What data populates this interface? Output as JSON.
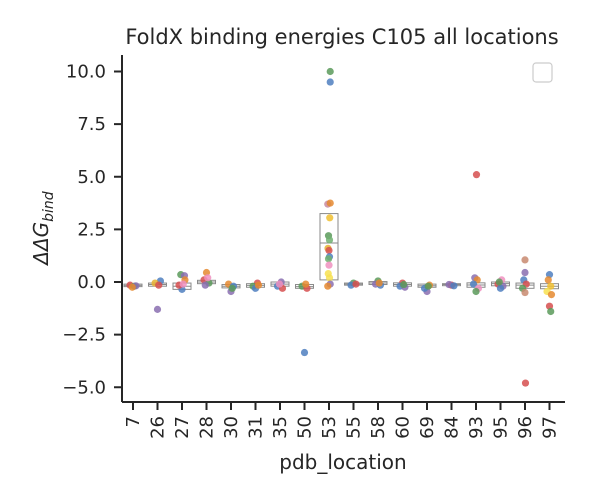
{
  "chart_data": {
    "type": "box",
    "title": "FoldX binding energies C105 all locations",
    "xlabel": "pdb_location",
    "ylabel_parts": {
      "delta": "ΔΔG",
      "subscript": "bind"
    },
    "categories": [
      "7",
      "26",
      "27",
      "28",
      "30",
      "31",
      "35",
      "50",
      "53",
      "55",
      "58",
      "60",
      "69",
      "84",
      "93",
      "95",
      "96",
      "97"
    ],
    "ylim": [
      -5.7,
      10.9
    ],
    "yticks": [
      {
        "value": 10.0,
        "label": "10.0"
      },
      {
        "value": 7.5,
        "label": "7.5"
      },
      {
        "value": 5.0,
        "label": "5.0"
      },
      {
        "value": 2.5,
        "label": "2.5"
      },
      {
        "value": 0.0,
        "label": "0.0"
      },
      {
        "value": -2.5,
        "label": "−2.5"
      },
      {
        "value": -5.0,
        "label": "−5.0"
      }
    ],
    "legend": {
      "placement": "top-right",
      "entries": []
    },
    "grid": false,
    "boxes": [
      {
        "q1": -0.22,
        "median": -0.16,
        "q3": -0.1
      },
      {
        "q1": -0.2,
        "median": -0.12,
        "q3": -0.05
      },
      {
        "q1": -0.35,
        "median": -0.2,
        "q3": -0.05
      },
      {
        "q1": -0.08,
        "median": 0.0,
        "q3": 0.08
      },
      {
        "q1": -0.28,
        "median": -0.2,
        "q3": -0.12
      },
      {
        "q1": -0.25,
        "median": -0.16,
        "q3": -0.08
      },
      {
        "q1": -0.2,
        "median": -0.1,
        "q3": 0.0
      },
      {
        "q1": -0.3,
        "median": -0.22,
        "q3": -0.12
      },
      {
        "q1": 0.1,
        "median": 1.85,
        "q3": 3.25
      },
      {
        "q1": -0.15,
        "median": -0.1,
        "q3": -0.05
      },
      {
        "q1": -0.12,
        "median": -0.05,
        "q3": 0.02
      },
      {
        "q1": -0.2,
        "median": -0.12,
        "q3": -0.04
      },
      {
        "q1": -0.25,
        "median": -0.18,
        "q3": -0.1
      },
      {
        "q1": -0.16,
        "median": -0.12,
        "q3": -0.08
      },
      {
        "q1": -0.25,
        "median": -0.14,
        "q3": -0.04
      },
      {
        "q1": -0.18,
        "median": -0.08,
        "q3": 0.0
      },
      {
        "q1": -0.3,
        "median": -0.15,
        "q3": -0.05
      },
      {
        "q1": -0.32,
        "median": -0.2,
        "q3": -0.08
      }
    ],
    "points": [
      {
        "cat": 0,
        "dx": -0.12,
        "y": -0.15,
        "color": "#d64f4f"
      },
      {
        "cat": 0,
        "dx": 0.05,
        "y": -0.2,
        "color": "#5a9a5a"
      },
      {
        "cat": 0,
        "dx": 0.12,
        "y": -0.18,
        "color": "#8a6fb0"
      },
      {
        "cat": 0,
        "dx": -0.03,
        "y": -0.25,
        "color": "#e58a30"
      },
      {
        "cat": 1,
        "dx": 0.0,
        "y": -1.3,
        "color": "#8a6fb0"
      },
      {
        "cat": 1,
        "dx": 0.12,
        "y": 0.05,
        "color": "#4f7fbf"
      },
      {
        "cat": 1,
        "dx": -0.1,
        "y": -0.05,
        "color": "#e5b030"
      },
      {
        "cat": 1,
        "dx": 0.05,
        "y": -0.15,
        "color": "#d64f4f"
      },
      {
        "cat": 2,
        "dx": -0.05,
        "y": 0.35,
        "color": "#5a9a5a"
      },
      {
        "cat": 2,
        "dx": 0.1,
        "y": 0.3,
        "color": "#8a6fb0"
      },
      {
        "cat": 2,
        "dx": 0.0,
        "y": -0.35,
        "color": "#4f7fbf"
      },
      {
        "cat": 2,
        "dx": -0.12,
        "y": -0.15,
        "color": "#d64f4f"
      },
      {
        "cat": 2,
        "dx": 0.12,
        "y": 0.1,
        "color": "#e58a30"
      },
      {
        "cat": 2,
        "dx": 0.05,
        "y": -0.1,
        "color": "#f090c0"
      },
      {
        "cat": 3,
        "dx": 0.0,
        "y": 0.45,
        "color": "#e58a30"
      },
      {
        "cat": 3,
        "dx": -0.1,
        "y": 0.1,
        "color": "#d64f4f"
      },
      {
        "cat": 3,
        "dx": 0.1,
        "y": -0.05,
        "color": "#5a9a5a"
      },
      {
        "cat": 3,
        "dx": 0.05,
        "y": 0.2,
        "color": "#f090c0"
      },
      {
        "cat": 3,
        "dx": -0.05,
        "y": -0.15,
        "color": "#8a6fb0"
      },
      {
        "cat": 4,
        "dx": 0.0,
        "y": -0.45,
        "color": "#8a6fb0"
      },
      {
        "cat": 4,
        "dx": -0.1,
        "y": -0.1,
        "color": "#e58a30"
      },
      {
        "cat": 4,
        "dx": 0.1,
        "y": -0.2,
        "color": "#4f7fbf"
      },
      {
        "cat": 4,
        "dx": 0.05,
        "y": -0.3,
        "color": "#5a9a5a"
      },
      {
        "cat": 5,
        "dx": 0.08,
        "y": -0.05,
        "color": "#d64f4f"
      },
      {
        "cat": 5,
        "dx": -0.1,
        "y": -0.2,
        "color": "#5a9a5a"
      },
      {
        "cat": 5,
        "dx": 0.0,
        "y": -0.3,
        "color": "#4f7fbf"
      },
      {
        "cat": 5,
        "dx": 0.12,
        "y": -0.15,
        "color": "#e58a30"
      },
      {
        "cat": 6,
        "dx": 0.05,
        "y": 0.0,
        "color": "#8a6fb0"
      },
      {
        "cat": 6,
        "dx": -0.1,
        "y": -0.2,
        "color": "#4f7fbf"
      },
      {
        "cat": 6,
        "dx": 0.1,
        "y": -0.3,
        "color": "#d64f4f"
      },
      {
        "cat": 6,
        "dx": -0.02,
        "y": -0.1,
        "color": "#f090c0"
      },
      {
        "cat": 7,
        "dx": 0.0,
        "y": -3.35,
        "color": "#4f7fbf"
      },
      {
        "cat": 7,
        "dx": -0.1,
        "y": -0.2,
        "color": "#5a9a5a"
      },
      {
        "cat": 7,
        "dx": 0.1,
        "y": -0.3,
        "color": "#d64f4f"
      },
      {
        "cat": 7,
        "dx": 0.05,
        "y": -0.1,
        "color": "#e58a30"
      },
      {
        "cat": 8,
        "dx": 0.05,
        "y": 10.0,
        "color": "#5a9a5a"
      },
      {
        "cat": 8,
        "dx": 0.05,
        "y": 9.5,
        "color": "#4f7fbf"
      },
      {
        "cat": 8,
        "dx": -0.05,
        "y": 3.7,
        "color": "#c88aa0"
      },
      {
        "cat": 8,
        "dx": 0.05,
        "y": 3.75,
        "color": "#e58a30"
      },
      {
        "cat": 8,
        "dx": 0.03,
        "y": 3.05,
        "color": "#f0c030"
      },
      {
        "cat": 8,
        "dx": -0.02,
        "y": 2.2,
        "color": "#5a9a5a"
      },
      {
        "cat": 8,
        "dx": 0.02,
        "y": 2.0,
        "color": "#70b070"
      },
      {
        "cat": 8,
        "dx": -0.04,
        "y": 1.6,
        "color": "#e5b030"
      },
      {
        "cat": 8,
        "dx": 0.0,
        "y": 1.5,
        "color": "#d64f4f"
      },
      {
        "cat": 8,
        "dx": 0.02,
        "y": 1.2,
        "color": "#4f7fbf"
      },
      {
        "cat": 8,
        "dx": -0.02,
        "y": 1.1,
        "color": "#70b070"
      },
      {
        "cat": 8,
        "dx": 0.0,
        "y": 0.8,
        "color": "#f090c0"
      },
      {
        "cat": 8,
        "dx": -0.03,
        "y": 0.4,
        "color": "#f7e050"
      },
      {
        "cat": 8,
        "dx": 0.02,
        "y": 0.2,
        "color": "#f7e050"
      },
      {
        "cat": 8,
        "dx": 0.05,
        "y": -0.1,
        "color": "#8a6fb0"
      },
      {
        "cat": 8,
        "dx": -0.05,
        "y": -0.2,
        "color": "#e58a30"
      },
      {
        "cat": 9,
        "dx": 0.0,
        "y": -0.05,
        "color": "#5a9a5a"
      },
      {
        "cat": 9,
        "dx": -0.1,
        "y": -0.15,
        "color": "#4f7fbf"
      },
      {
        "cat": 9,
        "dx": 0.1,
        "y": -0.1,
        "color": "#d64f4f"
      },
      {
        "cat": 10,
        "dx": 0.0,
        "y": 0.05,
        "color": "#5a9a5a"
      },
      {
        "cat": 10,
        "dx": -0.1,
        "y": -0.1,
        "color": "#8a6fb0"
      },
      {
        "cat": 10,
        "dx": 0.1,
        "y": -0.15,
        "color": "#4f7fbf"
      },
      {
        "cat": 10,
        "dx": 0.05,
        "y": -0.05,
        "color": "#e58a30"
      },
      {
        "cat": 11,
        "dx": 0.0,
        "y": -0.05,
        "color": "#d64f4f"
      },
      {
        "cat": 11,
        "dx": -0.1,
        "y": -0.2,
        "color": "#4f7fbf"
      },
      {
        "cat": 11,
        "dx": 0.1,
        "y": -0.25,
        "color": "#8a6fb0"
      },
      {
        "cat": 11,
        "dx": 0.05,
        "y": -0.12,
        "color": "#5a9a5a"
      },
      {
        "cat": 12,
        "dx": 0.0,
        "y": -0.45,
        "color": "#8a6fb0"
      },
      {
        "cat": 12,
        "dx": -0.1,
        "y": -0.3,
        "color": "#4f7fbf"
      },
      {
        "cat": 12,
        "dx": 0.1,
        "y": -0.15,
        "color": "#e58a30"
      },
      {
        "cat": 12,
        "dx": 0.05,
        "y": -0.2,
        "color": "#5a9a5a"
      },
      {
        "cat": 13,
        "dx": 0.0,
        "y": -0.15,
        "color": "#d64f4f"
      },
      {
        "cat": 13,
        "dx": -0.1,
        "y": -0.12,
        "color": "#8a6fb0"
      },
      {
        "cat": 13,
        "dx": 0.1,
        "y": -0.18,
        "color": "#4f7fbf"
      },
      {
        "cat": 14,
        "dx": 0.02,
        "y": 5.1,
        "color": "#d64f4f"
      },
      {
        "cat": 14,
        "dx": -0.05,
        "y": 0.2,
        "color": "#8a6fb0"
      },
      {
        "cat": 14,
        "dx": 0.05,
        "y": 0.1,
        "color": "#e58a30"
      },
      {
        "cat": 14,
        "dx": -0.1,
        "y": -0.1,
        "color": "#4f7fbf"
      },
      {
        "cat": 14,
        "dx": 0.1,
        "y": -0.3,
        "color": "#f090c0"
      },
      {
        "cat": 14,
        "dx": 0.0,
        "y": -0.45,
        "color": "#5a9a5a"
      },
      {
        "cat": 15,
        "dx": 0.05,
        "y": 0.1,
        "color": "#f090c0"
      },
      {
        "cat": 15,
        "dx": -0.1,
        "y": -0.1,
        "color": "#d64f4f"
      },
      {
        "cat": 15,
        "dx": 0.1,
        "y": -0.2,
        "color": "#8a6fb0"
      },
      {
        "cat": 15,
        "dx": 0.0,
        "y": -0.3,
        "color": "#4f7fbf"
      },
      {
        "cat": 15,
        "dx": -0.05,
        "y": 0.0,
        "color": "#5a9a5a"
      },
      {
        "cat": 16,
        "dx": 0.0,
        "y": 1.05,
        "color": "#c88a70"
      },
      {
        "cat": 16,
        "dx": 0.0,
        "y": 0.45,
        "color": "#8a6fb0"
      },
      {
        "cat": 16,
        "dx": -0.05,
        "y": 0.1,
        "color": "#4f7fbf"
      },
      {
        "cat": 16,
        "dx": 0.05,
        "y": -0.1,
        "color": "#d64f4f"
      },
      {
        "cat": 16,
        "dx": -0.1,
        "y": -0.3,
        "color": "#5a9a5a"
      },
      {
        "cat": 16,
        "dx": 0.0,
        "y": -0.5,
        "color": "#c88a70"
      },
      {
        "cat": 16,
        "dx": 0.02,
        "y": -4.8,
        "color": "#d64f4f"
      },
      {
        "cat": 17,
        "dx": 0.0,
        "y": 0.35,
        "color": "#4f7fbf"
      },
      {
        "cat": 17,
        "dx": -0.05,
        "y": 0.1,
        "color": "#e58a30"
      },
      {
        "cat": 17,
        "dx": 0.05,
        "y": -0.2,
        "color": "#f0c030"
      },
      {
        "cat": 17,
        "dx": -0.1,
        "y": -0.45,
        "color": "#f7e050"
      },
      {
        "cat": 17,
        "dx": 0.08,
        "y": -0.6,
        "color": "#e58a30"
      },
      {
        "cat": 17,
        "dx": 0.0,
        "y": -1.15,
        "color": "#d64f4f"
      },
      {
        "cat": 17,
        "dx": 0.05,
        "y": -1.4,
        "color": "#5a9a5a"
      }
    ]
  }
}
